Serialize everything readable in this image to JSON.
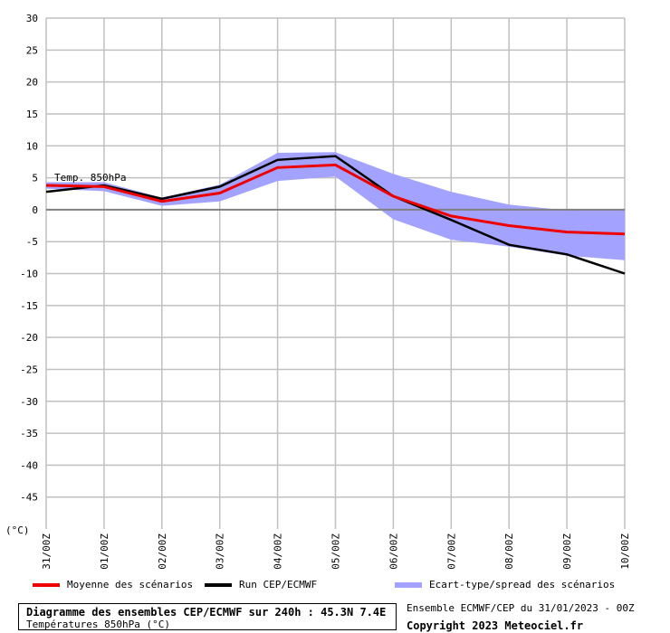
{
  "chart_data": {
    "type": "line",
    "title": "Diagramme des ensembles CEP/ECMWF sur 240h : 45.3N 7.4E",
    "subtitle": "Températures 850hPa (°C)",
    "series_label": "Temp. 850hPa",
    "ylabel": "(°C)",
    "ylim": [
      -50,
      30
    ],
    "y_ticks": [
      30,
      25,
      20,
      15,
      10,
      5,
      0,
      -5,
      -10,
      -15,
      -20,
      -25,
      -30,
      -35,
      -40,
      -45
    ],
    "categories": [
      "31/00Z",
      "01/00Z",
      "02/00Z",
      "03/00Z",
      "04/00Z",
      "05/00Z",
      "06/00Z",
      "07/00Z",
      "08/00Z",
      "09/00Z",
      "10/00Z"
    ],
    "grid": true,
    "series": [
      {
        "name": "Moyenne des scénarios",
        "color": "#ee0000",
        "values": [
          3.8,
          3.6,
          1.3,
          2.6,
          6.6,
          7.0,
          2.1,
          -1.0,
          -2.5,
          -3.5,
          -3.8
        ]
      },
      {
        "name": "Run CEP/ECMWF",
        "color": "#000000",
        "values": [
          2.8,
          3.8,
          1.7,
          3.6,
          7.8,
          8.4,
          2.1,
          -1.6,
          -5.5,
          -7.0,
          -10.0
        ]
      }
    ],
    "spread": {
      "name": "Ecart-type/spread des scénarios",
      "color": "#a3a3ff",
      "upper": [
        4.3,
        4.3,
        1.9,
        3.9,
        8.9,
        9.0,
        5.6,
        2.8,
        0.8,
        -0.1,
        0.0
      ],
      "lower": [
        3.3,
        2.9,
        0.6,
        1.3,
        4.5,
        5.2,
        -1.5,
        -4.7,
        -5.8,
        -7.2,
        -7.9
      ]
    }
  },
  "legend": {
    "mean": "Moyenne des scénarios",
    "run": "Run CEP/ECMWF",
    "spread": "Ecart-type/spread des scénarios"
  },
  "info": {
    "title": "Diagramme des ensembles CEP/ECMWF sur 240h : 45.3N 7.4E",
    "subtitle": "Températures 850hPa (°C)",
    "run": "Ensemble ECMWF/CEP du 31/01/2023 - 00Z",
    "copyright": "Copyright 2023 Meteociel.fr"
  }
}
